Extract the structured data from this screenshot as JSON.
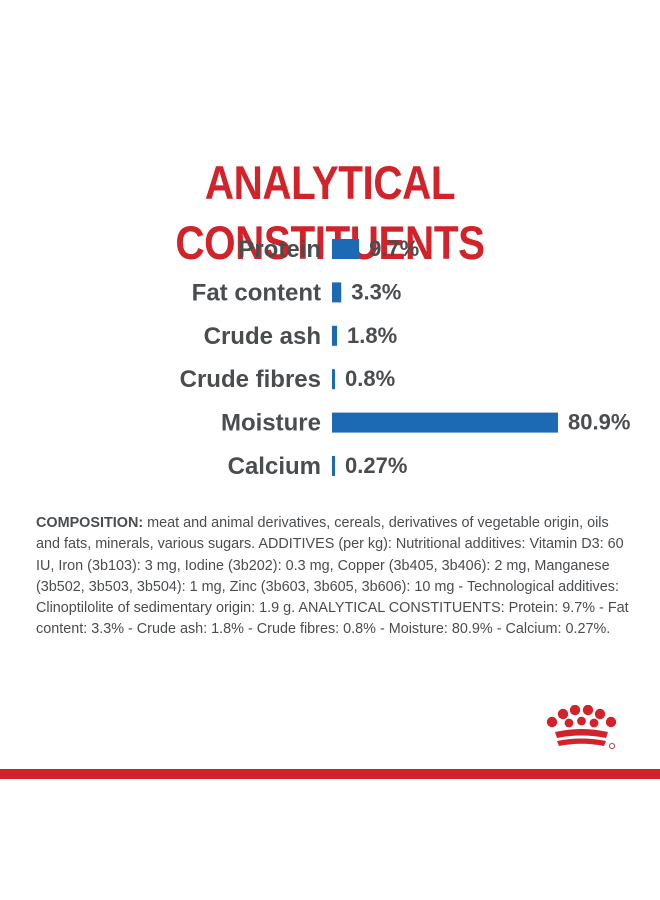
{
  "colors": {
    "accent": "#d2232a",
    "bar": "#1b6ab3",
    "text": "#4a4d50"
  },
  "composition": {
    "lead": "COMPOSITION:",
    "body": " meat and animal derivatives, cereals, derivatives of vegetable origin, oils and fats, minerals, various sugars. ADDITIVES (per kg): Nutritional additives: Vitamin D3: 60 IU, Iron (3b103): 3 mg, Iodine (3b202): 0.3 mg, Copper (3b405, 3b406): 2 mg, Manganese (3b502, 3b503, 3b504): 1 mg, Zinc (3b603, 3b605, 3b606): 10 mg - Technological additives: Clinoptilolite of sedimentary origin: 1.9 g. ANALYTICAL CONSTITUENTS: Protein: 9.7% - Fat content: 3.3% - Crude ash: 1.8% - Crude fibres: 0.8% - Moisture: 80.9% - Calcium: 0.27%."
  },
  "logo": {
    "icon": "crown-icon"
  },
  "chart_data": {
    "type": "bar",
    "orientation": "horizontal",
    "title": "ANALYTICAL CONSTITUENTS",
    "categories": [
      "Protein",
      "Fat content",
      "Crude ash",
      "Crude fibres",
      "Moisture",
      "Calcium"
    ],
    "values": [
      9.7,
      3.3,
      1.8,
      0.8,
      80.9,
      0.27
    ],
    "value_labels": [
      "9.7%",
      "3.3%",
      "1.8%",
      "0.8%",
      "80.9%",
      "0.27%"
    ],
    "unit": "%",
    "xlim": [
      0,
      80.9
    ],
    "xlabel": "",
    "ylabel": ""
  }
}
